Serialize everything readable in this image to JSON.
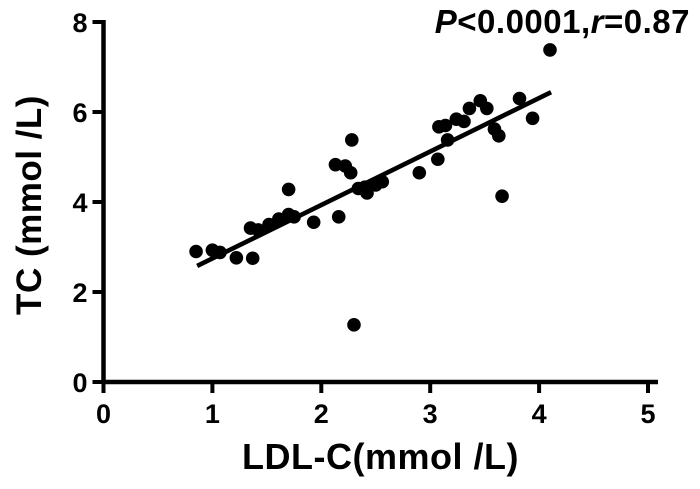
{
  "figure": {
    "background": "#ffffff",
    "foreground": "#000000",
    "y_axis_title": "TC (mmol /L)",
    "x_axis_title": "LDL-C(mmol /L)",
    "annotation": {
      "p_label": "P",
      "p_value": "<0.0001,",
      "r_label": "r",
      "r_value": "=0.87"
    }
  },
  "chart_data": {
    "type": "scatter",
    "title": "",
    "xlabel": "LDL-C(mmol /L)",
    "ylabel": "TC (mmol /L)",
    "annotation": "P<0.0001,r=0.87",
    "xlim": [
      0,
      5
    ],
    "ylim": [
      0,
      8
    ],
    "x_ticks": [
      "0",
      "1",
      "2",
      "3",
      "4",
      "5"
    ],
    "y_ticks": [
      "0",
      "2",
      "4",
      "6",
      "8"
    ],
    "grid": false,
    "legend": "none",
    "marker_color": "#000000",
    "line_color": "#000000",
    "points": [
      [
        0.85,
        2.9
      ],
      [
        1.0,
        2.93
      ],
      [
        1.07,
        2.88
      ],
      [
        1.22,
        2.76
      ],
      [
        1.37,
        2.75
      ],
      [
        1.35,
        3.42
      ],
      [
        1.42,
        3.38
      ],
      [
        1.52,
        3.5
      ],
      [
        1.61,
        3.62
      ],
      [
        1.7,
        3.72
      ],
      [
        1.75,
        3.67
      ],
      [
        1.7,
        4.28
      ],
      [
        1.93,
        3.55
      ],
      [
        2.16,
        3.67
      ],
      [
        2.13,
        4.83
      ],
      [
        2.22,
        4.8
      ],
      [
        2.27,
        4.65
      ],
      [
        2.28,
        5.38
      ],
      [
        2.34,
        4.3
      ],
      [
        2.4,
        4.33
      ],
      [
        2.42,
        4.2
      ],
      [
        2.5,
        4.38
      ],
      [
        2.56,
        4.45
      ],
      [
        2.3,
        1.27
      ],
      [
        2.9,
        4.65
      ],
      [
        3.07,
        4.95
      ],
      [
        3.08,
        5.67
      ],
      [
        3.14,
        5.7
      ],
      [
        3.16,
        5.38
      ],
      [
        3.24,
        5.84
      ],
      [
        3.31,
        5.79
      ],
      [
        3.36,
        6.08
      ],
      [
        3.46,
        6.25
      ],
      [
        3.52,
        6.08
      ],
      [
        3.59,
        5.62
      ],
      [
        3.63,
        5.47
      ],
      [
        3.66,
        4.13
      ],
      [
        3.82,
        6.3
      ],
      [
        3.94,
        5.86
      ],
      [
        4.1,
        7.38
      ]
    ],
    "trendline": {
      "x1": 0.86,
      "y1": 2.58,
      "x2": 4.11,
      "y2": 6.44
    }
  }
}
